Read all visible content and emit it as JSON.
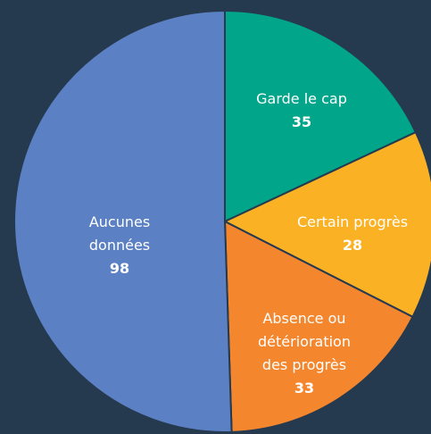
{
  "chart_data": {
    "type": "pie",
    "categories": [
      "Garde le cap",
      "Certain progrès",
      "Absence ou détérioration des progrès",
      "Aucunes données"
    ],
    "values": [
      35,
      28,
      33,
      98
    ],
    "colors": [
      "#00a58a",
      "#fbb124",
      "#f4862e",
      "#5b80c4"
    ]
  }
}
